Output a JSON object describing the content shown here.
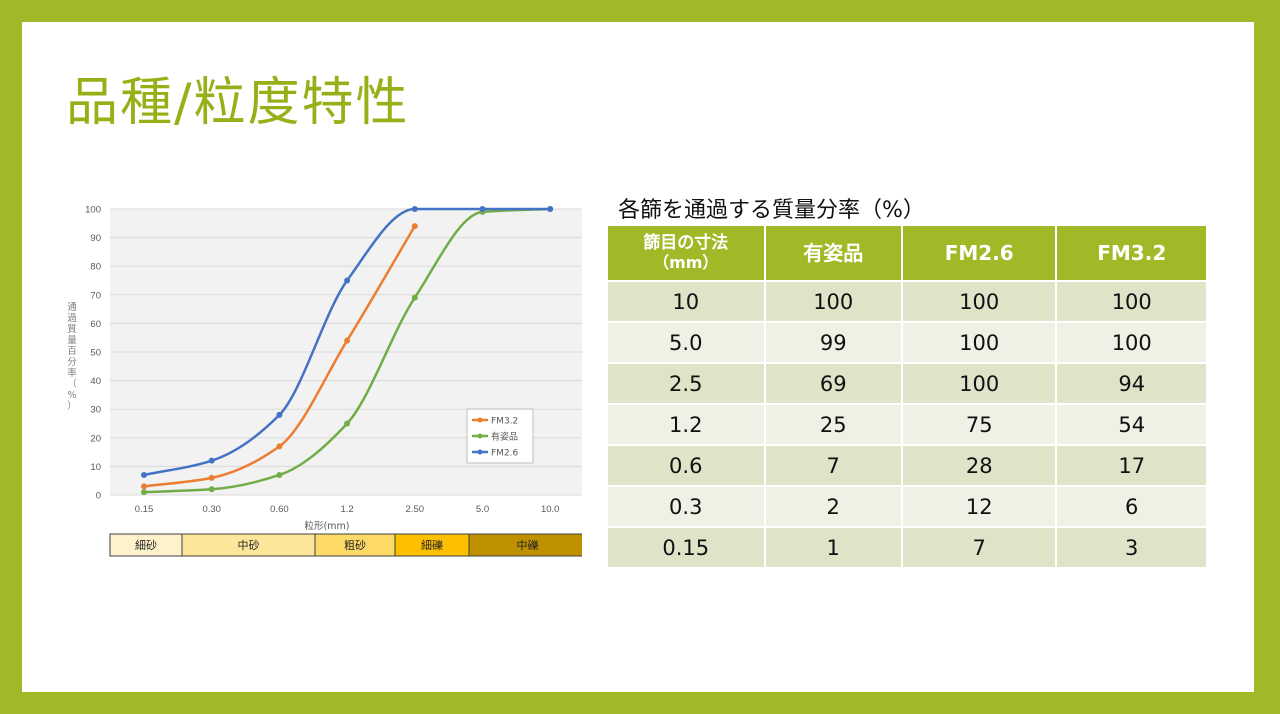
{
  "slide": {
    "title": "品種/粒度特性",
    "table_caption": "各篩を通過する質量分率（%）"
  },
  "table": {
    "headers": [
      "篩目の寸法",
      "有姿品",
      "FM2.6",
      "FM3.2"
    ],
    "header_sub": "（mm）",
    "rows": [
      [
        "10",
        "100",
        "100",
        "100"
      ],
      [
        "5.0",
        "99",
        "100",
        "100"
      ],
      [
        "2.5",
        "69",
        "100",
        "94"
      ],
      [
        "1.2",
        "25",
        "75",
        "54"
      ],
      [
        "0.6",
        "7",
        "28",
        "17"
      ],
      [
        "0.3",
        "2",
        "12",
        "6"
      ],
      [
        "0.15",
        "1",
        "7",
        "3"
      ]
    ]
  },
  "chart_data": {
    "type": "line",
    "categories": [
      "0.15",
      "0.30",
      "0.60",
      "1.2",
      "2.50",
      "5.0",
      "10.0"
    ],
    "xlabel": "粒形(mm)",
    "ylabel": "通過質量百分率（%）",
    "ylim": [
      0,
      100
    ],
    "yticks": [
      0,
      10,
      20,
      30,
      40,
      50,
      60,
      70,
      80,
      90,
      100
    ],
    "grid": true,
    "legend_position": "right",
    "series": [
      {
        "name": "FM3.2",
        "color": "#ed7d31",
        "values": [
          3,
          6,
          17,
          54,
          94,
          null,
          null
        ]
      },
      {
        "name": "有姿品",
        "color": "#70ad47",
        "values": [
          1,
          2,
          7,
          25,
          69,
          99,
          100
        ]
      },
      {
        "name": "FM2.6",
        "color": "#4472c4",
        "values": [
          7,
          12,
          28,
          75,
          100,
          100,
          100
        ]
      }
    ],
    "classification_bar": {
      "segments": [
        {
          "label": "細砂",
          "color": "#fdf2cc"
        },
        {
          "label": "中砂",
          "color": "#fde699"
        },
        {
          "label": "粗砂",
          "color": "#fdd966"
        },
        {
          "label": "細礫",
          "color": "#fdc000"
        },
        {
          "label": "中礫",
          "color": "#bf9000"
        }
      ],
      "boundaries": [
        "0.075",
        "0.250",
        "0.850",
        "2",
        "4.75",
        "19"
      ]
    }
  }
}
